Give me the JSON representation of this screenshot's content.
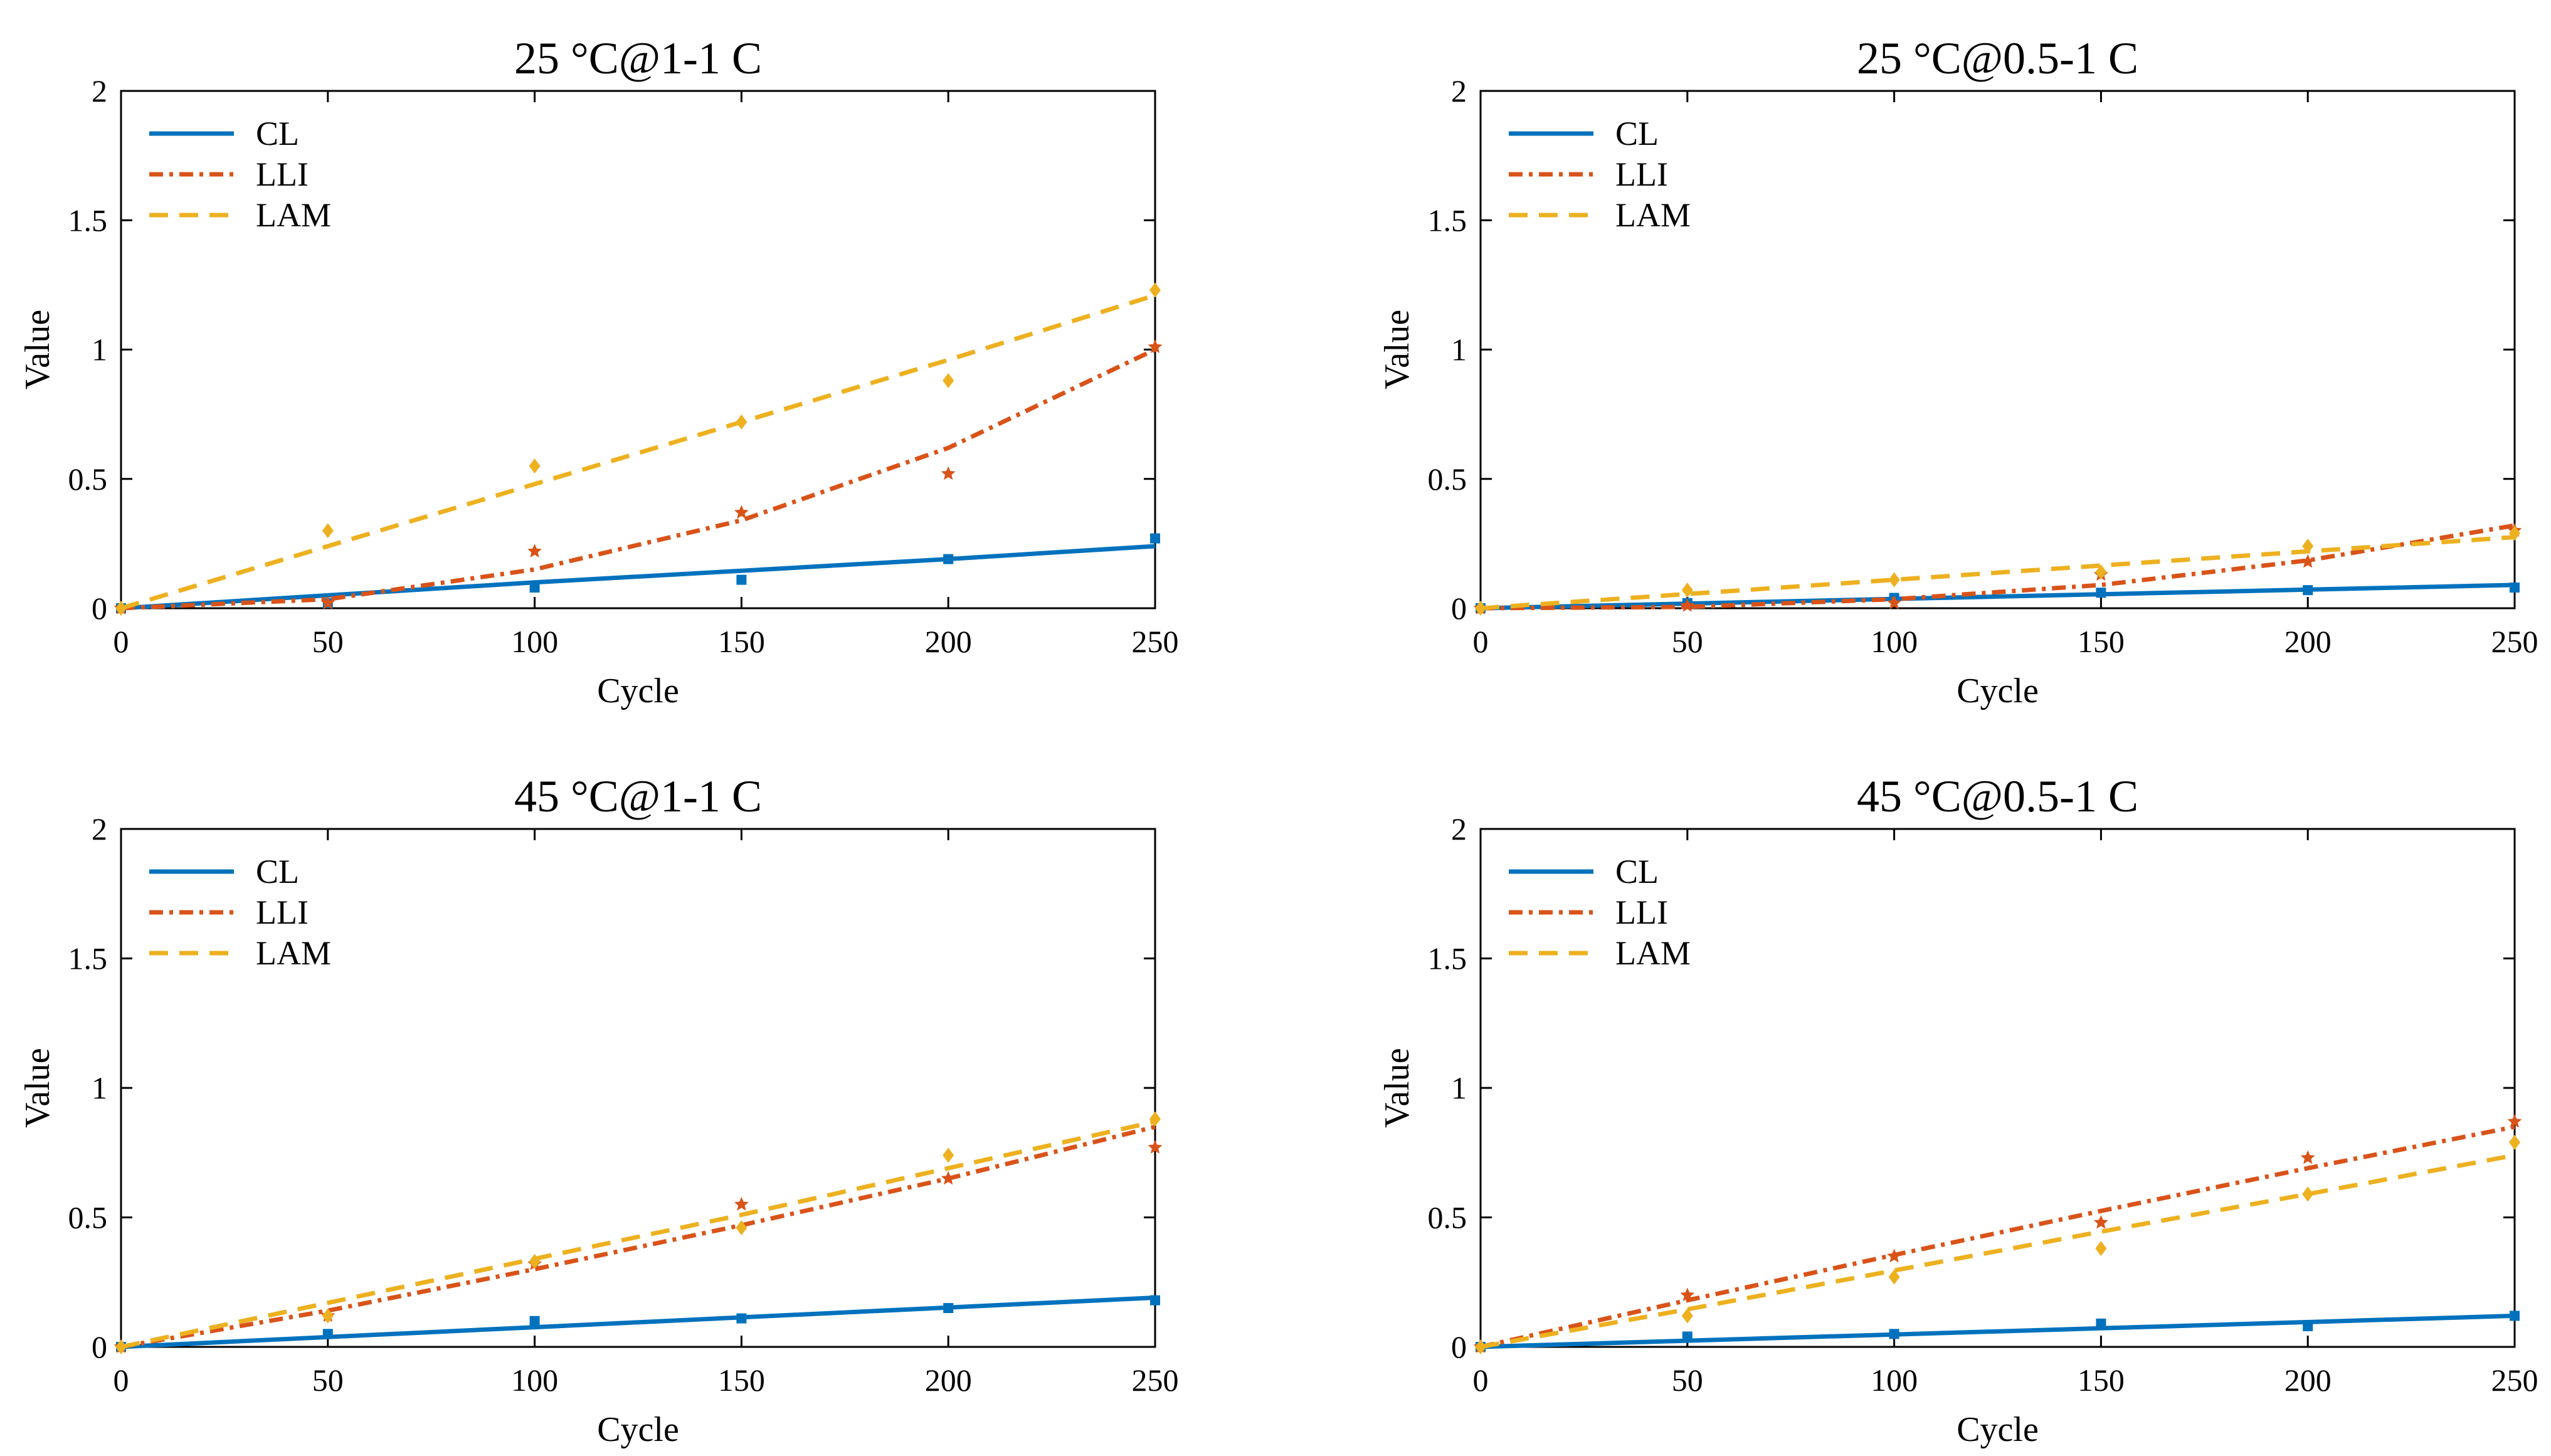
{
  "chart_data": [
    {
      "type": "line",
      "title": "25 °C@1-1 C",
      "xlabel": "Cycle",
      "ylabel": "Value",
      "xlim": [
        0,
        250
      ],
      "ylim": [
        0,
        2
      ],
      "xticks": [
        "0",
        "50",
        "100",
        "150",
        "200",
        "250"
      ],
      "yticks": [
        "0",
        "0.5",
        "1",
        "1.5",
        "2"
      ],
      "grid": false,
      "legend_position": "top-left",
      "x": [
        0,
        50,
        100,
        150,
        200,
        250
      ],
      "series": [
        {
          "name": "CL",
          "style": "solid",
          "color": "#0072BD",
          "marker": "square",
          "fit": [
            0,
            0.05,
            0.1,
            0.145,
            0.19,
            0.24
          ],
          "points": [
            0,
            0.02,
            0.08,
            0.11,
            0.19,
            0.27
          ]
        },
        {
          "name": "LLI",
          "style": "dash-dot",
          "color": "#D95319",
          "marker": "star",
          "fit": [
            0,
            0.035,
            0.15,
            0.34,
            0.62,
            1.0
          ],
          "points": [
            0,
            0.02,
            0.22,
            0.37,
            0.52,
            1.01
          ]
        },
        {
          "name": "LAM",
          "style": "dashed",
          "color": "#EDB120",
          "marker": "diamond",
          "fit": [
            0,
            0.24,
            0.48,
            0.72,
            0.96,
            1.21
          ],
          "points": [
            0,
            0.3,
            0.55,
            0.72,
            0.88,
            1.23
          ]
        }
      ]
    },
    {
      "type": "line",
      "title": "25 °C@0.5-1 C",
      "xlabel": "Cycle",
      "ylabel": "Value",
      "xlim": [
        0,
        250
      ],
      "ylim": [
        0,
        2
      ],
      "xticks": [
        "0",
        "50",
        "100",
        "150",
        "200",
        "250"
      ],
      "yticks": [
        "0",
        "0.5",
        "1",
        "1.5",
        "2"
      ],
      "grid": false,
      "legend_position": "top-left",
      "x": [
        0,
        50,
        100,
        150,
        200,
        250
      ],
      "series": [
        {
          "name": "CL",
          "style": "solid",
          "color": "#0072BD",
          "marker": "square",
          "fit": [
            0,
            0.018,
            0.036,
            0.054,
            0.072,
            0.09
          ],
          "points": [
            0,
            0.02,
            0.04,
            0.06,
            0.07,
            0.08
          ]
        },
        {
          "name": "LLI",
          "style": "dash-dot",
          "color": "#D95319",
          "marker": "star",
          "fit": [
            0,
            0.005,
            0.035,
            0.09,
            0.185,
            0.32
          ],
          "points": [
            0,
            0.01,
            0.02,
            0.13,
            0.18,
            0.3
          ]
        },
        {
          "name": "LAM",
          "style": "dashed",
          "color": "#EDB120",
          "marker": "diamond",
          "fit": [
            0,
            0.055,
            0.11,
            0.165,
            0.22,
            0.275
          ],
          "points": [
            0,
            0.07,
            0.11,
            0.14,
            0.24,
            0.29
          ]
        }
      ]
    },
    {
      "type": "line",
      "title": "45 °C@1-1 C",
      "xlabel": "Cycle",
      "ylabel": "Value",
      "xlim": [
        0,
        250
      ],
      "ylim": [
        0,
        2
      ],
      "xticks": [
        "0",
        "50",
        "100",
        "150",
        "200",
        "250"
      ],
      "yticks": [
        "0",
        "0.5",
        "1",
        "1.5",
        "2"
      ],
      "grid": false,
      "legend_position": "top-left",
      "x": [
        0,
        50,
        100,
        150,
        200,
        250
      ],
      "series": [
        {
          "name": "CL",
          "style": "solid",
          "color": "#0072BD",
          "marker": "square",
          "fit": [
            0,
            0.038,
            0.076,
            0.114,
            0.152,
            0.19
          ],
          "points": [
            0,
            0.05,
            0.1,
            0.11,
            0.15,
            0.18
          ]
        },
        {
          "name": "LLI",
          "style": "dash-dot",
          "color": "#D95319",
          "marker": "star",
          "fit": [
            0,
            0.14,
            0.3,
            0.47,
            0.65,
            0.85
          ],
          "points": [
            0,
            0.12,
            0.32,
            0.55,
            0.65,
            0.77
          ]
        },
        {
          "name": "LAM",
          "style": "dashed",
          "color": "#EDB120",
          "marker": "diamond",
          "fit": [
            0,
            0.17,
            0.34,
            0.51,
            0.69,
            0.87
          ],
          "points": [
            0,
            0.12,
            0.33,
            0.46,
            0.74,
            0.88
          ]
        }
      ]
    },
    {
      "type": "line",
      "title": "45 °C@0.5-1 C",
      "xlabel": "Cycle",
      "ylabel": "Value",
      "xlim": [
        0,
        250
      ],
      "ylim": [
        0,
        2
      ],
      "xticks": [
        "0",
        "50",
        "100",
        "150",
        "200",
        "250"
      ],
      "yticks": [
        "0",
        "0.5",
        "1",
        "1.5",
        "2"
      ],
      "grid": false,
      "legend_position": "top-left",
      "x": [
        0,
        50,
        100,
        150,
        200,
        250
      ],
      "series": [
        {
          "name": "CL",
          "style": "solid",
          "color": "#0072BD",
          "marker": "square",
          "fit": [
            0,
            0.024,
            0.048,
            0.072,
            0.096,
            0.12
          ],
          "points": [
            0,
            0.04,
            0.05,
            0.09,
            0.08,
            0.12
          ]
        },
        {
          "name": "LLI",
          "style": "dash-dot",
          "color": "#D95319",
          "marker": "star",
          "fit": [
            0,
            0.18,
            0.355,
            0.525,
            0.69,
            0.85
          ],
          "points": [
            0,
            0.2,
            0.35,
            0.48,
            0.73,
            0.87
          ]
        },
        {
          "name": "LAM",
          "style": "dashed",
          "color": "#EDB120",
          "marker": "diamond",
          "fit": [
            0,
            0.145,
            0.295,
            0.445,
            0.59,
            0.74
          ],
          "points": [
            0,
            0.12,
            0.27,
            0.38,
            0.59,
            0.79
          ]
        }
      ]
    }
  ]
}
